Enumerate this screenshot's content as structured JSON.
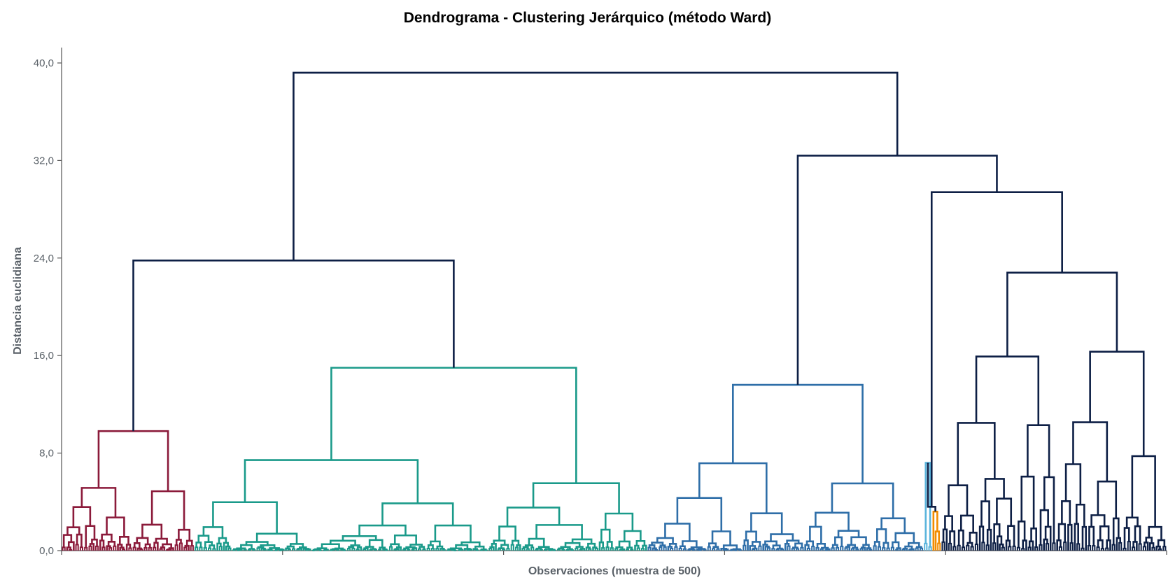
{
  "chart_data": {
    "type": "dendrogram",
    "title": "Dendrograma - Clustering Jerárquico (método Ward)",
    "xlabel": "Observaciones (muestra de 500)",
    "ylabel": "Distancia euclidiana",
    "ylim": [
      0,
      41.5
    ],
    "yticks": [
      0,
      8,
      16,
      24,
      32,
      40
    ],
    "ytick_labels": [
      "0,0",
      "8,0",
      "16,0",
      "24,0",
      "32,0",
      "40,0"
    ],
    "n_observations": 500,
    "xticks": [
      0,
      100,
      200,
      300,
      400,
      500
    ],
    "grid": false,
    "top_merges": [
      {
        "left": "A",
        "right": "B",
        "height": 39.2
      },
      {
        "left": "A1 (granate)",
        "right": "A2 (verde azulado)",
        "height": 23.8
      },
      {
        "left": "B1 (azul)",
        "right": "B2",
        "height": 32.4
      },
      {
        "left": "B2a (celeste + naranja)",
        "right": "B2b",
        "height": 29.4
      },
      {
        "left": "B2b1",
        "right": "B2b2",
        "height": 22.8
      },
      {
        "left": "B2b1a",
        "right": "B2b1b",
        "height": 16.4
      }
    ],
    "clusters": [
      {
        "color": "#8b1a3a",
        "range": [
          0,
          60
        ],
        "merge_height": 9.8
      },
      {
        "color": "#1a9a8a",
        "range": [
          60,
          265
        ],
        "merge_height": 15.0
      },
      {
        "color": "#2e6ea8",
        "range": [
          265,
          390
        ],
        "merge_height": 13.6
      },
      {
        "color": "#5ab4dc",
        "range": [
          390,
          394
        ],
        "merge_height": 7.2
      },
      {
        "color": "#f28c00",
        "range": [
          394,
          398
        ],
        "merge_height": 3.2
      },
      {
        "color": "#0d1f45",
        "range": [
          398,
          500
        ],
        "merge_height": 22.8
      }
    ],
    "link_color": "#0d1f45"
  }
}
